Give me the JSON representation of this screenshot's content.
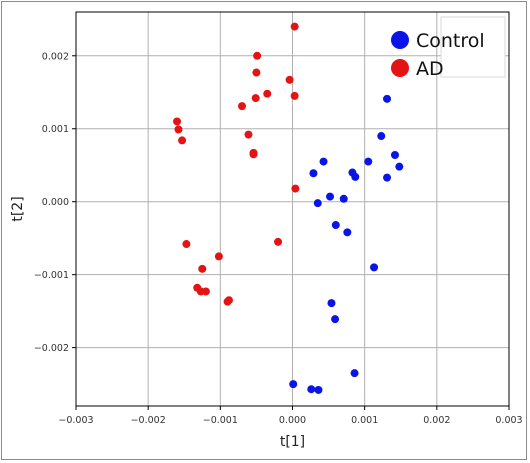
{
  "chart_data": {
    "type": "scatter",
    "xlabel": "t[1]",
    "ylabel": "t[2]",
    "xlim": [
      -0.003,
      0.003
    ],
    "ylim": [
      -0.0028,
      0.0026
    ],
    "xticks": [
      -0.003,
      -0.002,
      -0.001,
      0.0,
      0.001,
      0.002,
      0.003
    ],
    "xtick_labels": [
      "−0.003",
      "−0.002",
      "−0.001",
      "0.000",
      "0.001",
      "0.002",
      "0.003"
    ],
    "yticks": [
      0.002,
      0.001,
      0.0,
      -0.001,
      -0.002
    ],
    "ytick_labels": [
      "0.002",
      "0.001",
      "0.000",
      "−0.001",
      "−0.002"
    ],
    "grid": true,
    "legend_position": "top-right",
    "series": [
      {
        "name": "Control",
        "color": "#0a14e6",
        "points": [
          [
            0.00131,
            0.00141
          ],
          [
            0.00123,
            0.0009
          ],
          [
            0.00142,
            0.00064
          ],
          [
            0.00148,
            0.00048
          ],
          [
            0.00105,
            0.00055
          ],
          [
            0.00131,
            0.00033
          ],
          [
            0.00043,
            0.00055
          ],
          [
            0.00029,
            0.00039
          ],
          [
            0.00083,
            0.0004
          ],
          [
            0.00087,
            0.00034
          ],
          [
            0.00052,
            7e-05
          ],
          [
            0.00071,
            4e-05
          ],
          [
            0.00035,
            -2e-05
          ],
          [
            0.0006,
            -0.00032
          ],
          [
            0.00076,
            -0.00042
          ],
          [
            0.00113,
            -0.0009
          ],
          [
            0.00054,
            -0.00139
          ],
          [
            0.00059,
            -0.00161
          ],
          [
            0.00086,
            -0.00235
          ],
          [
            1e-05,
            -0.0025
          ],
          [
            0.00026,
            -0.00257
          ],
          [
            0.00036,
            -0.00258
          ]
        ]
      },
      {
        "name": "AD",
        "color": "#e51414",
        "points": [
          [
            3e-05,
            0.0024
          ],
          [
            -0.00049,
            0.002
          ],
          [
            -0.0005,
            0.00177
          ],
          [
            -4e-05,
            0.00167
          ],
          [
            -0.00035,
            0.00148
          ],
          [
            -0.00051,
            0.00142
          ],
          [
            3e-05,
            0.00145
          ],
          [
            -0.0007,
            0.00131
          ],
          [
            -0.0016,
            0.0011
          ],
          [
            -0.00158,
            0.00099
          ],
          [
            -0.00153,
            0.00084
          ],
          [
            -0.00061,
            0.00092
          ],
          [
            -0.00054,
            0.00067
          ],
          [
            -0.00054,
            0.00065
          ],
          [
            4e-05,
            0.00018
          ],
          [
            -0.0002,
            -0.00055
          ],
          [
            -0.00147,
            -0.00058
          ],
          [
            -0.00102,
            -0.00075
          ],
          [
            -0.00125,
            -0.00092
          ],
          [
            -0.00132,
            -0.00118
          ],
          [
            -0.00127,
            -0.00123
          ],
          [
            -0.0012,
            -0.00123
          ],
          [
            -0.00088,
            -0.00135
          ],
          [
            -0.0009,
            -0.00137
          ]
        ]
      }
    ]
  }
}
